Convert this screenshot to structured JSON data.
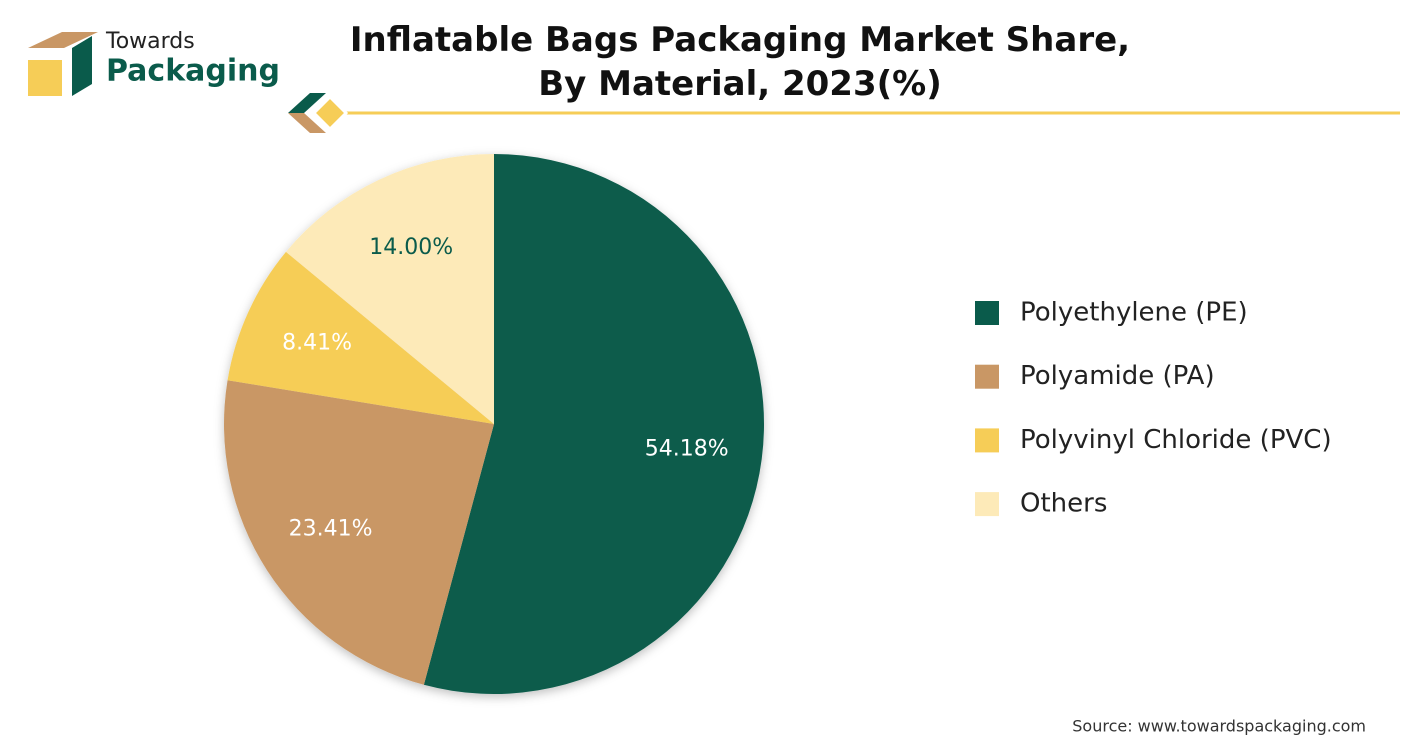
{
  "brand": {
    "line1": "Towards",
    "line2": "Packaging"
  },
  "chart_data": {
    "type": "pie",
    "title": "Inflatable Bags Packaging Market Share,\nBy Material, 2023(%)",
    "categories": [
      "Polyethylene (PE)",
      "Polyamide (PA)",
      "Polyvinyl Chloride (PVC)",
      "Others"
    ],
    "values": [
      54.18,
      23.41,
      8.41,
      14.0
    ],
    "value_labels": [
      "54.18%",
      "23.41%",
      "8.41%",
      "14.00%"
    ],
    "colors": [
      "#0a5b4b",
      "#c99765",
      "#f6cd57",
      "#fdeab8"
    ],
    "legend": "right",
    "source": "Source: www.towardspackaging.com"
  }
}
